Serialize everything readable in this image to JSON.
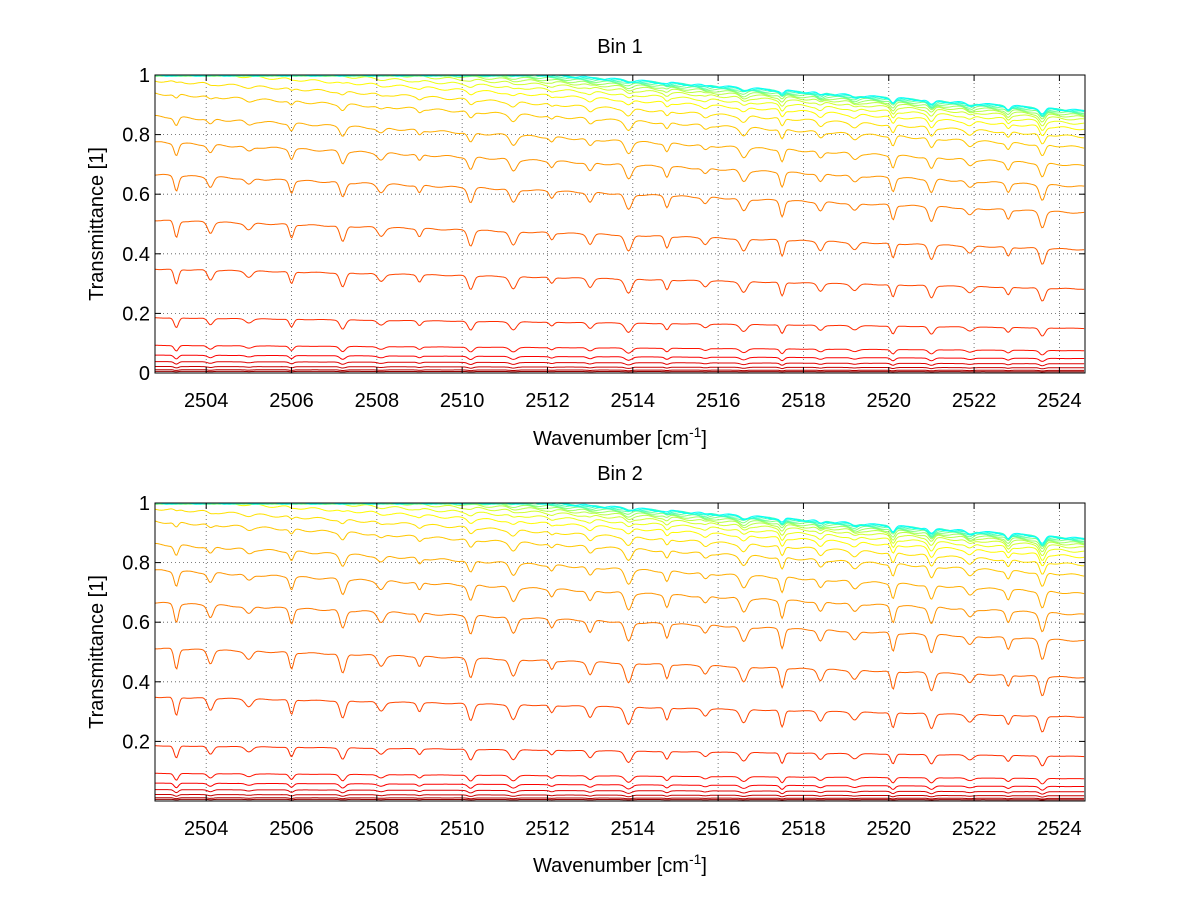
{
  "figure": {
    "background": "#ffffff"
  },
  "chart_data": [
    {
      "type": "line",
      "title": "Bin 1",
      "xlabel": "Wavenumber [cm",
      "xlabel_sup": "-1",
      "xlabel_end": "]",
      "ylabel": "Transmittance [1]",
      "xlim": [
        2502.8,
        2524.6
      ],
      "ylim": [
        0,
        1
      ],
      "xticks": [
        2504,
        2506,
        2508,
        2510,
        2512,
        2514,
        2516,
        2518,
        2520,
        2522,
        2524
      ],
      "yticks": [
        0,
        0.2,
        0.4,
        0.6,
        0.8,
        1
      ],
      "ytick_labels": [
        "0",
        "0.2",
        "0.4",
        "0.6",
        "0.8",
        "1"
      ],
      "grid": true,
      "grid_style": "dotted",
      "colormap": "jet",
      "curve_levels": [
        0.005,
        0.01,
        0.02,
        0.035,
        0.055,
        0.085,
        0.17,
        0.32,
        0.47,
        0.61,
        0.71,
        0.79,
        0.86,
        0.9,
        0.93,
        0.95,
        0.965,
        0.975,
        0.982,
        0.988,
        0.992,
        0.995,
        0.997,
        0.998,
        0.999
      ],
      "level_trend": {
        "left": 1.09,
        "right": 0.88
      },
      "absorption_line_centers": [
        2503.3,
        2504.1,
        2505.0,
        2506.0,
        2507.2,
        2508.1,
        2509.0,
        2510.2,
        2511.2,
        2512.1,
        2513.0,
        2513.9,
        2514.8,
        2515.7,
        2516.6,
        2517.5,
        2518.4,
        2519.2,
        2520.1,
        2521.0,
        2521.9,
        2522.8,
        2523.6
      ],
      "absorption_line_depth": 0.22
    },
    {
      "type": "line",
      "title": "Bin 2",
      "xlabel": "Wavenumber [cm",
      "xlabel_sup": "-1",
      "xlabel_end": "]",
      "ylabel": "Transmittance [1]",
      "xlim": [
        2502.8,
        2524.6
      ],
      "ylim": [
        0,
        1
      ],
      "xticks": [
        2504,
        2506,
        2508,
        2510,
        2512,
        2514,
        2516,
        2518,
        2520,
        2522,
        2524
      ],
      "yticks": [
        0.2,
        0.4,
        0.6,
        0.8,
        1
      ],
      "ytick_labels": [
        "0.2",
        "0.4",
        "0.6",
        "0.8",
        "1"
      ],
      "grid": true,
      "grid_style": "dotted",
      "colormap": "jet",
      "curve_levels": [
        0.005,
        0.01,
        0.02,
        0.035,
        0.055,
        0.085,
        0.17,
        0.32,
        0.47,
        0.61,
        0.71,
        0.79,
        0.86,
        0.9,
        0.93,
        0.95,
        0.965,
        0.975,
        0.982,
        0.988,
        0.992,
        0.995,
        0.997,
        0.998,
        0.999
      ],
      "level_trend": {
        "left": 1.09,
        "right": 0.88
      },
      "absorption_line_centers": [
        2503.3,
        2504.1,
        2505.0,
        2506.0,
        2507.2,
        2508.1,
        2509.0,
        2510.2,
        2511.2,
        2512.1,
        2513.0,
        2513.9,
        2514.8,
        2515.7,
        2516.6,
        2517.5,
        2518.4,
        2519.2,
        2520.1,
        2521.0,
        2521.9,
        2522.8,
        2523.6
      ],
      "absorption_line_depth": 0.27
    }
  ]
}
